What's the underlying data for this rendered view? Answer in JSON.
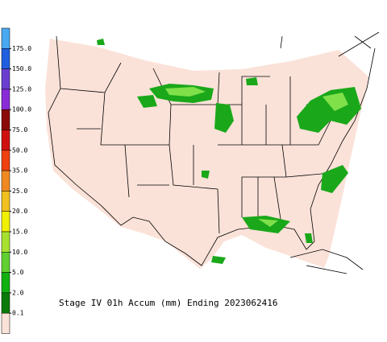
{
  "title": "Stage IV 01h Accum (mm) Ending 2023062416",
  "legend": {
    "labels": [
      "175.0",
      "150.0",
      "125.0",
      "100.0",
      "75.0",
      "50.0",
      "35.0",
      "25.0",
      "20.0",
      "15.0",
      "10.0",
      "5.0",
      "2.0",
      "0.1"
    ],
    "colors": [
      "#4aa8f0",
      "#1f5fe0",
      "#6a3fd0",
      "#8a2bd8",
      "#8c0a0a",
      "#d01010",
      "#ee4010",
      "#f08a20",
      "#f0c020",
      "#f0f000",
      "#a8e030",
      "#60d030",
      "#10b010",
      "#0a7a0a",
      "#fbe2d8"
    ]
  }
}
